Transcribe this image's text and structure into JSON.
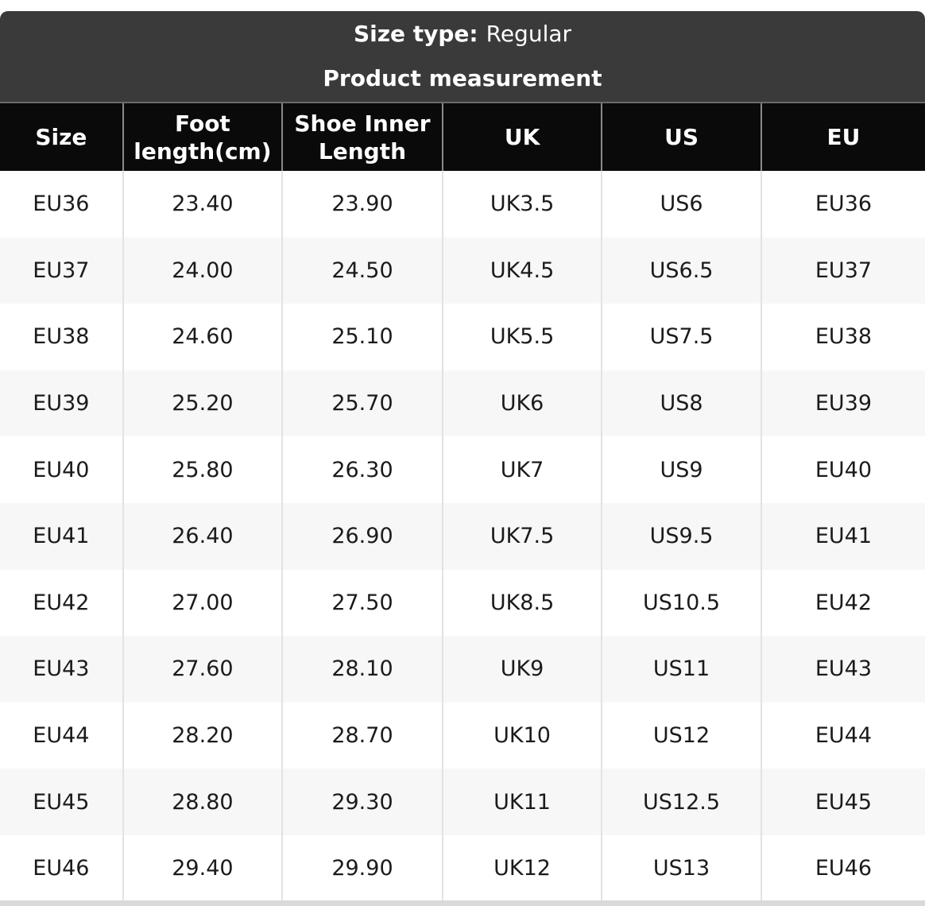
{
  "colors": {
    "band_bg": "#3a3a3a",
    "table_header_bg": "#0a0a0a",
    "table_header_text": "#ffffff",
    "alt_row_bg": "#f7f7f7",
    "row_bg": "#ffffff",
    "column_separator": "#e2e2e2",
    "header_column_separator": "#8a8a8a",
    "bottom_strip": "#d9d9d9",
    "body_text": "#1b1b1b"
  },
  "header": {
    "size_type_label": "Size type:",
    "size_type_value": "Regular",
    "subtitle": "Product measurement"
  },
  "table": {
    "columns": [
      "Size",
      "Foot length(cm)",
      "Shoe Inner Length",
      "UK",
      "US",
      "EU"
    ],
    "rows": [
      [
        "EU36",
        "23.40",
        "23.90",
        "UK3.5",
        "US6",
        "EU36"
      ],
      [
        "EU37",
        "24.00",
        "24.50",
        "UK4.5",
        "US6.5",
        "EU37"
      ],
      [
        "EU38",
        "24.60",
        "25.10",
        "UK5.5",
        "US7.5",
        "EU38"
      ],
      [
        "EU39",
        "25.20",
        "25.70",
        "UK6",
        "US8",
        "EU39"
      ],
      [
        "EU40",
        "25.80",
        "26.30",
        "UK7",
        "US9",
        "EU40"
      ],
      [
        "EU41",
        "26.40",
        "26.90",
        "UK7.5",
        "US9.5",
        "EU41"
      ],
      [
        "EU42",
        "27.00",
        "27.50",
        "UK8.5",
        "US10.5",
        "EU42"
      ],
      [
        "EU43",
        "27.60",
        "28.10",
        "UK9",
        "US11",
        "EU43"
      ],
      [
        "EU44",
        "28.20",
        "28.70",
        "UK10",
        "US12",
        "EU44"
      ],
      [
        "EU45",
        "28.80",
        "29.30",
        "UK11",
        "US12.5",
        "EU45"
      ],
      [
        "EU46",
        "29.40",
        "29.90",
        "UK12",
        "US13",
        "EU46"
      ]
    ]
  }
}
